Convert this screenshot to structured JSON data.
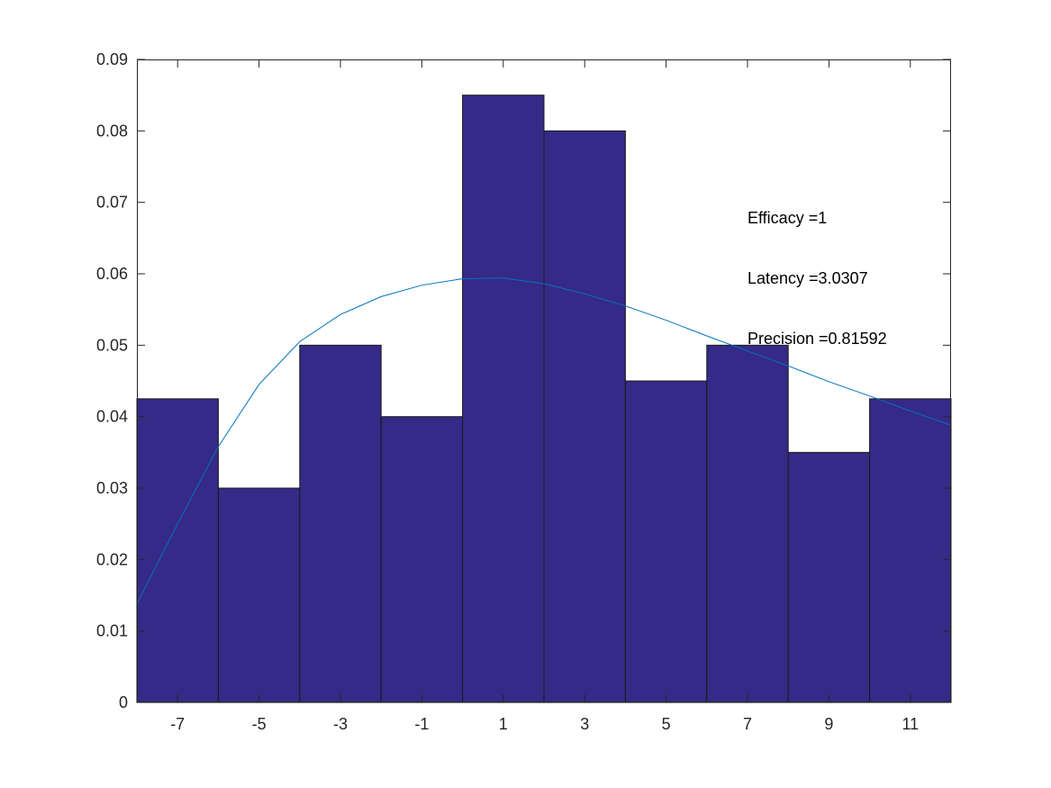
{
  "chart_data": {
    "type": "bar",
    "title": "",
    "xlabel": "",
    "ylabel": "",
    "xlim": [
      -8,
      12
    ],
    "ylim": [
      0,
      0.09
    ],
    "grid": false,
    "bin_edges": [
      -8,
      -6,
      -4,
      -2,
      0,
      2,
      4,
      6,
      8,
      10,
      12
    ],
    "values": [
      0.0425,
      0.03,
      0.05,
      0.04,
      0.085,
      0.08,
      0.045,
      0.05,
      0.035,
      0.0425
    ],
    "x_ticks": [
      -7,
      -5,
      -3,
      -1,
      1,
      3,
      5,
      7,
      9,
      11
    ],
    "x_tick_labels": [
      "-7",
      "-5",
      "-3",
      "-1",
      "1",
      "3",
      "5",
      "7",
      "9",
      "11"
    ],
    "y_ticks": [
      0,
      0.01,
      0.02,
      0.03,
      0.04,
      0.05,
      0.06,
      0.07,
      0.08,
      0.09
    ],
    "y_tick_labels": [
      "0",
      "0.01",
      "0.02",
      "0.03",
      "0.04",
      "0.05",
      "0.06",
      "0.07",
      "0.08",
      "0.09"
    ],
    "curve": {
      "x": [
        -8,
        -7,
        -6,
        -5,
        -4,
        -3,
        -2,
        -1,
        0,
        1,
        2,
        3,
        4,
        5,
        6,
        7,
        8,
        9,
        10,
        11,
        12
      ],
      "y": [
        0.0138,
        0.025,
        0.0358,
        0.0445,
        0.0505,
        0.0543,
        0.0568,
        0.0584,
        0.0593,
        0.0594,
        0.0586,
        0.0572,
        0.0555,
        0.0535,
        0.0513,
        0.0492,
        0.0471,
        0.0449,
        0.0429,
        0.0408,
        0.0388
      ]
    },
    "annotations": [
      "Efficacy =1",
      "Latency =3.0307",
      "Precision =0.81592"
    ],
    "colors": {
      "bar": "#352a87",
      "bar_edge": "#1a1a1a",
      "curve": "#0072bd",
      "axis": "#262626"
    }
  }
}
